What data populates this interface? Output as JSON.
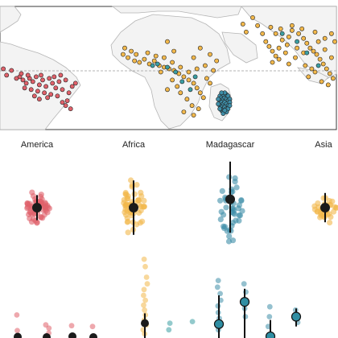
{
  "colors": {
    "america": "#e0616a",
    "africa": "#f2b84b",
    "africa_secondary": "#3b9ea3",
    "madagascar": "#3e8ea8",
    "asia": "#f2b84b",
    "land": "#f3f3f3",
    "coast": "#b5b5b5",
    "mean_marker": "#1b1b1b",
    "teal_marker": "#2f8ea3"
  },
  "chart_data": [
    {
      "type": "scatter",
      "subtype": "map",
      "grid": false,
      "legend": "none",
      "equator_line": true,
      "note": "occurrence points on world map; x = longitude (deg), y = latitude (deg)",
      "xlim": [
        -90,
        115
      ],
      "ylim": [
        -35,
        42
      ],
      "series": [
        {
          "color_key": "america",
          "points": [
            [
              -78,
              -2
            ],
            [
              -76,
              -4
            ],
            [
              -74,
              -6
            ],
            [
              -72,
              -3
            ],
            [
              -70,
              -5
            ],
            [
              -68,
              -2
            ],
            [
              -66,
              -7
            ],
            [
              -64,
              -4
            ],
            [
              -62,
              -8
            ],
            [
              -60,
              -3
            ],
            [
              -58,
              -6
            ],
            [
              -56,
              -9
            ],
            [
              -54,
              -5
            ],
            [
              -52,
              -10
            ],
            [
              -50,
              -4
            ],
            [
              -48,
              -12
            ],
            [
              -46,
              -8
            ],
            [
              -75,
              -9
            ],
            [
              -71,
              -10
            ],
            [
              -67,
              -11
            ],
            [
              -63,
              -12
            ],
            [
              -59,
              -13
            ],
            [
              -55,
              -14
            ],
            [
              -69,
              -14
            ],
            [
              -73,
              -1
            ],
            [
              -65,
              -1
            ],
            [
              -57,
              -2
            ],
            [
              -61,
              -15
            ],
            [
              -49,
              -17
            ],
            [
              -47,
              -22
            ],
            [
              -52,
              -18
            ],
            [
              -80,
              -3
            ],
            [
              -77,
              0
            ],
            [
              -83,
              2
            ],
            [
              -86,
              -1
            ],
            [
              -88,
              3
            ],
            [
              -53,
              -1
            ],
            [
              -44,
              -6
            ],
            [
              -50,
              -20
            ],
            [
              -66,
              -16
            ]
          ]
        },
        {
          "color_key": "africa",
          "points": [
            [
              -15,
              12
            ],
            [
              -12,
              10
            ],
            [
              -8,
              8
            ],
            [
              -5,
              7
            ],
            [
              -2,
              9
            ],
            [
              1,
              6
            ],
            [
              4,
              8
            ],
            [
              7,
              5
            ],
            [
              10,
              4
            ],
            [
              13,
              3
            ],
            [
              16,
              2
            ],
            [
              19,
              0
            ],
            [
              22,
              -2
            ],
            [
              25,
              -4
            ],
            [
              28,
              -6
            ],
            [
              30,
              -9
            ],
            [
              32,
              -12
            ],
            [
              34,
              -15
            ],
            [
              36,
              -3
            ],
            [
              38,
              -6
            ],
            [
              40,
              2
            ],
            [
              35,
              5
            ],
            [
              30,
              3
            ],
            [
              25,
              1
            ],
            [
              20,
              4
            ],
            [
              15,
              7
            ],
            [
              10,
              10
            ],
            [
              5,
              11
            ],
            [
              0,
              13
            ],
            [
              -10,
              14
            ],
            [
              24,
              -16
            ],
            [
              27,
              -20
            ],
            [
              22,
              -24
            ],
            [
              28,
              -26
            ],
            [
              31,
              -22
            ],
            [
              15,
              -4
            ],
            [
              18,
              -8
            ],
            [
              12,
              -10
            ],
            [
              20,
              -12
            ],
            [
              8,
              1
            ],
            [
              -14,
              16
            ],
            [
              -7,
              12
            ],
            [
              42,
              8
            ],
            [
              38,
              12
            ],
            [
              16,
              14
            ],
            [
              28,
              10
            ],
            [
              32,
              16
            ],
            [
              12,
              20
            ]
          ]
        },
        {
          "color_key": "africa_secondary",
          "points": [
            [
              3,
              5
            ],
            [
              17,
              1
            ],
            [
              26,
              -10
            ],
            [
              12,
              4
            ],
            [
              29,
              -2
            ],
            [
              6,
              6
            ],
            [
              21,
              -5
            ]
          ]
        },
        {
          "color_key": "madagascar",
          "points": [
            [
              44,
              -14
            ],
            [
              45,
              -15
            ],
            [
              46,
              -16
            ],
            [
              47,
              -15
            ],
            [
              48,
              -16
            ],
            [
              49,
              -17
            ],
            [
              44,
              -17
            ],
            [
              45,
              -18
            ],
            [
              46,
              -19
            ],
            [
              47,
              -18
            ],
            [
              48,
              -19
            ],
            [
              49,
              -20
            ],
            [
              44,
              -20
            ],
            [
              45,
              -21
            ],
            [
              46,
              -22
            ],
            [
              47,
              -21
            ],
            [
              48,
              -22
            ],
            [
              45,
              -23
            ],
            [
              46,
              -24
            ],
            [
              47,
              -24
            ],
            [
              46,
              -13
            ],
            [
              48,
              -13
            ],
            [
              49,
              -14
            ],
            [
              50,
              -16
            ],
            [
              50,
              -18
            ],
            [
              43,
              -19
            ],
            [
              44,
              -22
            ],
            [
              49,
              -22
            ],
            [
              47,
              -12
            ],
            [
              45,
              -12
            ],
            [
              46,
              -25
            ],
            [
              48,
              -24
            ],
            [
              43,
              -16
            ],
            [
              50,
              -20
            ],
            [
              47,
              -23
            ]
          ]
        },
        {
          "color_key": "asia",
          "points": [
            [
              72,
              20
            ],
            [
              74,
              17
            ],
            [
              76,
              14
            ],
            [
              78,
              11
            ],
            [
              80,
              9
            ],
            [
              82,
              21
            ],
            [
              86,
              23
            ],
            [
              88,
              27
            ],
            [
              92,
              25
            ],
            [
              95,
              22
            ],
            [
              97,
              19
            ],
            [
              99,
              16
            ],
            [
              101,
              14
            ],
            [
              103,
              12
            ],
            [
              105,
              9
            ],
            [
              107,
              6
            ],
            [
              109,
              3
            ],
            [
              111,
              0
            ],
            [
              113,
              -3
            ],
            [
              100,
              3
            ],
            [
              102,
              1
            ],
            [
              96,
              5
            ],
            [
              90,
              10
            ],
            [
              84,
              13
            ],
            [
              78,
              25
            ],
            [
              75,
              29
            ],
            [
              81,
              28
            ],
            [
              88,
              30
            ],
            [
              94,
              28
            ],
            [
              104,
              20
            ],
            [
              108,
              15
            ],
            [
              112,
              10
            ],
            [
              98,
              -2
            ],
            [
              106,
              -5
            ],
            [
              110,
              -7
            ],
            [
              80,
              16
            ],
            [
              85,
              18
            ],
            [
              91,
              16
            ],
            [
              86,
              6
            ],
            [
              76,
              7
            ],
            [
              70,
              25
            ],
            [
              60,
              26
            ],
            [
              58,
              31
            ],
            [
              64,
              35
            ],
            [
              67,
              30
            ],
            [
              114,
              20
            ],
            [
              112,
              25
            ],
            [
              102,
              26
            ],
            [
              108,
              22
            ],
            [
              95,
              13
            ]
          ]
        },
        {
          "color_key": "africa_secondary",
          "points": [
            [
              82,
              25
            ],
            [
              97,
              13
            ],
            [
              104,
              5
            ],
            [
              91,
              20
            ]
          ]
        }
      ]
    },
    {
      "type": "scatter",
      "subtype": "beeswarm",
      "legend": "none",
      "grid": false,
      "categories": [
        "America",
        "Africa",
        "Madagascar",
        "Asia"
      ],
      "groups": [
        {
          "category": "America",
          "color_key": "america",
          "mean": 0,
          "ci": [
            -0.6,
            0.6
          ],
          "spread": 0.9,
          "n": 60
        },
        {
          "category": "Africa",
          "color_key": "africa",
          "mean": 0,
          "ci": [
            -1.3,
            1.3
          ],
          "spread": 1.6,
          "n": 55
        },
        {
          "category": "Madagascar",
          "color_key": "madagascar",
          "mean": 0.4,
          "ci": [
            -1.2,
            2.2
          ],
          "spread": 2.1,
          "n": 45
        },
        {
          "category": "Asia",
          "color_key": "asia",
          "mean": 0,
          "ci": [
            -0.7,
            0.7
          ],
          "spread": 0.8,
          "n": 40
        }
      ]
    },
    {
      "type": "scatter",
      "subtype": "strip-with-intervals",
      "legend": "none",
      "grid": false,
      "note": "per-lineage strips; y in relative units, 0 = bottom of visible area",
      "ylim": [
        0,
        10
      ],
      "groups": [
        {
          "x": 1,
          "color_key": "america",
          "mean": 0.15,
          "ci": [
            0.0,
            0.3
          ],
          "values": [
            2.8,
            0.9
          ]
        },
        {
          "x": 2,
          "color_key": "america",
          "mean": 0.1,
          "ci": [
            0.0,
            0.2
          ],
          "values": [
            1.6,
            1.2,
            0.6
          ]
        },
        {
          "x": 3,
          "color_key": "america",
          "mean": 0.2,
          "ci": [
            0.0,
            0.3
          ],
          "values": [
            1.5
          ]
        },
        {
          "x": 4,
          "color_key": "america",
          "mean": 0.1,
          "ci": [
            0.0,
            0.2
          ],
          "values": [
            1.4
          ]
        },
        {
          "x": 5,
          "color_key": "africa",
          "mean": 1.8,
          "ci": [
            0.0,
            3.0
          ],
          "values": [
            9.6,
            8.7,
            7.4,
            6.6,
            5.9,
            5.2,
            4.6,
            4.0,
            3.4,
            2.8,
            2.2,
            1.6,
            1.0,
            0.5
          ]
        },
        {
          "x": 6,
          "color_key": "africa_secondary",
          "values": [
            1.8,
            1.0
          ]
        },
        {
          "x": 7,
          "color_key": "africa_secondary",
          "values": [
            2.0
          ]
        },
        {
          "x": 8,
          "color_key": "madagascar",
          "mean": 1.7,
          "ci": [
            0.0,
            5.2
          ],
          "values": [
            7.0,
            6.2,
            5.4,
            4.6,
            3.9,
            3.1,
            2.4,
            1.7,
            1.0
          ]
        },
        {
          "x": 9,
          "color_key": "madagascar",
          "mean": 4.4,
          "ci": [
            0.0,
            6.0
          ],
          "values": [
            6.6,
            5.6,
            4.6,
            3.6,
            2.6
          ]
        },
        {
          "x": 10,
          "color_key": "madagascar",
          "mean": 0.2,
          "ci": [
            0.0,
            2.2
          ],
          "values": [
            3.8,
            2.6,
            1.4
          ]
        },
        {
          "x": 11,
          "color_key": "madagascar",
          "mean": 2.6,
          "ci": [
            1.4,
            3.6
          ],
          "values": [
            3.4,
            1.9
          ]
        }
      ]
    }
  ]
}
